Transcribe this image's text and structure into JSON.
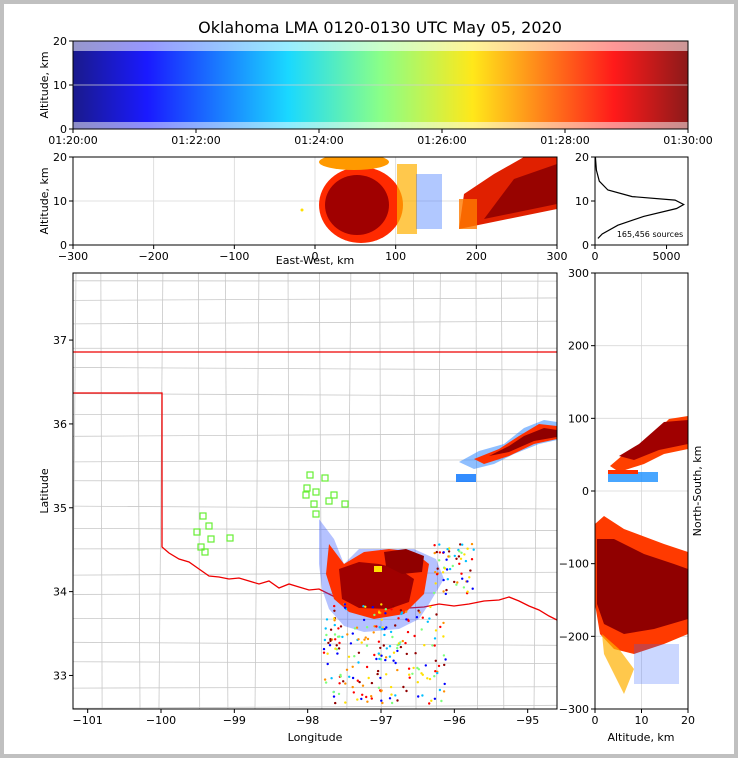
{
  "title": "Oklahoma LMA 0120-0130 UTC May 05, 2020",
  "chart_data": [
    {
      "name": "altitude-time",
      "type": "scatter",
      "xlabel": "",
      "ylabel": "Altitude, km",
      "x_ticks": [
        "01:20:00",
        "01:22:00",
        "01:24:00",
        "01:26:00",
        "01:28:00",
        "01:30:00"
      ],
      "xlim": [
        "01:20:00",
        "01:30:00"
      ],
      "ylim": [
        0,
        20
      ],
      "y_ticks": [
        0,
        10,
        20
      ],
      "color_encoding": "time (jet colormap)"
    },
    {
      "name": "altitude-eastwest",
      "type": "scatter",
      "xlabel": "East-West, km",
      "ylabel": "Altitude, km",
      "xlim": [
        -300,
        300
      ],
      "x_ticks": [
        -300,
        -200,
        -100,
        0,
        100,
        200,
        300
      ],
      "ylim": [
        0,
        20
      ],
      "y_ticks": [
        0,
        10,
        20
      ]
    },
    {
      "name": "altitude-histogram",
      "type": "line",
      "xlim": [
        0,
        6500
      ],
      "x_ticks": [
        0,
        5000
      ],
      "ylim": [
        0,
        20
      ],
      "y_ticks": [
        0,
        10,
        20
      ],
      "annotation": "165,456 sources",
      "profile": [
        {
          "count": 200,
          "alt": 1.5
        },
        {
          "count": 500,
          "alt": 2.5
        },
        {
          "count": 1600,
          "alt": 4.5
        },
        {
          "count": 3400,
          "alt": 6.5
        },
        {
          "count": 5700,
          "alt": 8.3
        },
        {
          "count": 6200,
          "alt": 9.2
        },
        {
          "count": 5600,
          "alt": 10.2
        },
        {
          "count": 2600,
          "alt": 11.0
        },
        {
          "count": 900,
          "alt": 12.5
        },
        {
          "count": 300,
          "alt": 14.5
        },
        {
          "count": 100,
          "alt": 17.0
        },
        {
          "count": 30,
          "alt": 20.0
        }
      ]
    },
    {
      "name": "plan-view",
      "type": "scatter",
      "xlabel": "Longitude",
      "ylabel": "Latitude",
      "xlim": [
        -101.2,
        -94.6
      ],
      "x_ticks": [
        -101,
        -100,
        -99,
        -98,
        -97,
        -96,
        -95
      ],
      "ylim": [
        32.6,
        37.8
      ],
      "y_ticks": [
        33,
        34,
        35,
        36,
        37
      ]
    },
    {
      "name": "northsouth-altitude",
      "type": "scatter",
      "xlabel": "Altitude, km",
      "ylabel": "North-South, km",
      "xlim": [
        0,
        20
      ],
      "x_ticks": [
        0,
        10,
        20
      ],
      "ylim": [
        -300,
        300
      ],
      "y_ticks": [
        -300,
        -200,
        -100,
        0,
        100,
        200,
        300
      ]
    }
  ]
}
